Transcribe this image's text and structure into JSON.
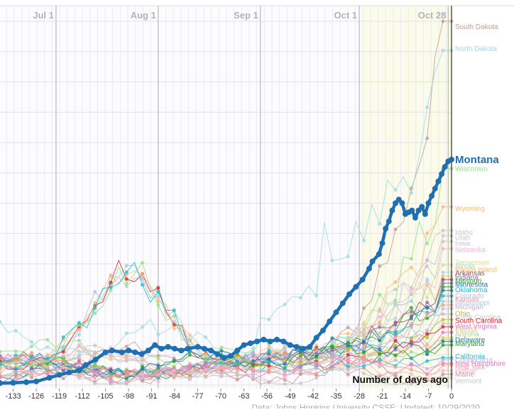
{
  "chart_data": {
    "type": "line",
    "x_range": [
      -137,
      0
    ],
    "y_range": [
      0,
      1
    ],
    "x_ticks": [
      -133,
      -126,
      -119,
      -112,
      -105,
      -98,
      -91,
      -84,
      -77,
      -70,
      -63,
      -56,
      -49,
      -42,
      -35,
      -28,
      -21,
      -14,
      -7,
      0
    ],
    "month_markers": [
      {
        "label": "Jul 1",
        "x": -120
      },
      {
        "label": "Aug 1",
        "x": -89
      },
      {
        "label": "Sep 1",
        "x": -58
      },
      {
        "label": "Oct 1",
        "x": -28
      },
      {
        "label": "Oct 28",
        "x": -1
      }
    ],
    "grid": true,
    "xlabel": "Number of days ago",
    "source": "Data: Johns Hopkins University CSSE; Updated: 10/29/2020",
    "highlight": {
      "name": "Montana",
      "color": "#1f6fb2",
      "points": [
        [
          -137,
          0.005
        ],
        [
          -133,
          0.006
        ],
        [
          -129,
          0.008
        ],
        [
          -126,
          0.01
        ],
        [
          -122,
          0.02
        ],
        [
          -119,
          0.028
        ],
        [
          -116,
          0.035
        ],
        [
          -113,
          0.04
        ],
        [
          -111,
          0.055
        ],
        [
          -108,
          0.07
        ],
        [
          -105,
          0.09
        ],
        [
          -103,
          0.095
        ],
        [
          -100,
          0.09
        ],
        [
          -98,
          0.095
        ],
        [
          -96,
          0.09
        ],
        [
          -94,
          0.085
        ],
        [
          -92,
          0.095
        ],
        [
          -90,
          0.11
        ],
        [
          -88,
          0.1
        ],
        [
          -86,
          0.105
        ],
        [
          -84,
          0.1
        ],
        [
          -82,
          0.095
        ],
        [
          -80,
          0.1
        ],
        [
          -77,
          0.105
        ],
        [
          -75,
          0.1
        ],
        [
          -73,
          0.095
        ],
        [
          -71,
          0.085
        ],
        [
          -69,
          0.075
        ],
        [
          -67,
          0.08
        ],
        [
          -65,
          0.095
        ],
        [
          -63,
          0.11
        ],
        [
          -61,
          0.115
        ],
        [
          -59,
          0.12
        ],
        [
          -57,
          0.125
        ],
        [
          -55,
          0.12
        ],
        [
          -53,
          0.125
        ],
        [
          -51,
          0.12
        ],
        [
          -49,
          0.11
        ],
        [
          -47,
          0.105
        ],
        [
          -45,
          0.1
        ],
        [
          -43,
          0.105
        ],
        [
          -41,
          0.13
        ],
        [
          -39,
          0.15
        ],
        [
          -37,
          0.175
        ],
        [
          -35,
          0.2
        ],
        [
          -33,
          0.225
        ],
        [
          -31,
          0.25
        ],
        [
          -29,
          0.27
        ],
        [
          -27,
          0.29
        ],
        [
          -25,
          0.32
        ],
        [
          -24,
          0.34
        ],
        [
          -22,
          0.36
        ],
        [
          -21,
          0.39
        ],
        [
          -20,
          0.43
        ],
        [
          -19,
          0.45
        ],
        [
          -18,
          0.48
        ],
        [
          -17,
          0.5
        ],
        [
          -16,
          0.51
        ],
        [
          -15,
          0.5
        ],
        [
          -14,
          0.47
        ],
        [
          -13,
          0.475
        ],
        [
          -12,
          0.48
        ],
        [
          -11,
          0.46
        ],
        [
          -10,
          0.48
        ],
        [
          -9,
          0.49
        ],
        [
          -8,
          0.47
        ],
        [
          -7,
          0.5
        ],
        [
          -6,
          0.52
        ],
        [
          -5,
          0.54
        ],
        [
          -4,
          0.56
        ],
        [
          -3,
          0.58
        ],
        [
          -2,
          0.6
        ],
        [
          -1,
          0.615
        ],
        [
          0,
          0.62
        ]
      ]
    },
    "series": [
      {
        "name": "South Dakota",
        "color": "#c49c94",
        "end": 1.0,
        "profile": "sd"
      },
      {
        "name": "North Dakota",
        "color": "#9edae5",
        "end": 0.92,
        "profile": "nd"
      },
      {
        "name": "Wisconsin",
        "color": "#98df8a",
        "end": 0.595,
        "profile": "wi"
      },
      {
        "name": "Wyoming",
        "color": "#ffbb78",
        "end": 0.49,
        "profile": "rise"
      },
      {
        "name": "Idaho",
        "color": "#c7c7c7",
        "end": 0.425,
        "profile": "rise"
      },
      {
        "name": "Utah",
        "color": "#c7c7c7",
        "end": 0.41,
        "profile": "rise"
      },
      {
        "name": "Iowa",
        "color": "#c7c7c7",
        "end": 0.395,
        "profile": "rise"
      },
      {
        "name": "Nebraska",
        "color": "#f7b6d2",
        "end": 0.375,
        "profile": "rise"
      },
      {
        "name": "Tennessee",
        "color": "#dbdb8d",
        "end": 0.33,
        "profile": "mid"
      },
      {
        "name": "Illinois",
        "color": "#9edae5",
        "end": 0.31,
        "profile": "mid"
      },
      {
        "name": "Rhode Island",
        "color": "#ffbb78",
        "end": 0.3,
        "profile": "mid"
      },
      {
        "name": "Arkansas",
        "color": "#8c564b",
        "end": 0.29,
        "profile": "mid"
      },
      {
        "name": "Indiana",
        "color": "#9467bd",
        "end": 0.28,
        "profile": "mid"
      },
      {
        "name": "Missouri",
        "color": "#2ca02c",
        "end": 0.27,
        "profile": "mid"
      },
      {
        "name": "Minnesota",
        "color": "#1f77b4",
        "end": 0.26,
        "profile": "mid"
      },
      {
        "name": "Oklahoma",
        "color": "#17becf",
        "end": 0.245,
        "profile": "mid"
      },
      {
        "name": "Colorado",
        "color": "#aec7e8",
        "end": 0.23,
        "profile": "mid"
      },
      {
        "name": "Kansas",
        "color": "#ff9896",
        "end": 0.22,
        "profile": "mid"
      },
      {
        "name": "Mississippi",
        "color": "#aec7e8",
        "end": 0.21,
        "profile": "summer"
      },
      {
        "name": "Michigan",
        "color": "#c5b0d5",
        "end": 0.195,
        "profile": "mid"
      },
      {
        "name": "Ohio",
        "color": "#bcbd22",
        "end": 0.18,
        "profile": "mid"
      },
      {
        "name": "North Carolina",
        "color": "#c7c7c7",
        "end": 0.17,
        "profile": "summer"
      },
      {
        "name": "South Carolina",
        "color": "#d62728",
        "end": 0.16,
        "profile": "summer"
      },
      {
        "name": "West Virginia",
        "color": "#e377c2",
        "end": 0.145,
        "profile": "mid"
      },
      {
        "name": "Florida",
        "color": "#ffbb78",
        "end": 0.13,
        "profile": "summer"
      },
      {
        "name": "Arizona",
        "color": "#98df8a",
        "end": 0.125,
        "profile": "summer"
      },
      {
        "name": "Delaware",
        "color": "#1f77b4",
        "end": 0.12,
        "profile": "flat"
      },
      {
        "name": "Maryland",
        "color": "#2ca02c",
        "end": 0.11,
        "profile": "flat"
      },
      {
        "name": "California",
        "color": "#17becf",
        "end": 0.075,
        "profile": "summer"
      },
      {
        "name": "Connecticut",
        "color": "#c5b0d5",
        "end": 0.07,
        "profile": "flat"
      },
      {
        "name": "New Hampshire",
        "color": "#e377c2",
        "end": 0.06,
        "profile": "flat"
      },
      {
        "name": "New York",
        "color": "#ff9896",
        "end": 0.055,
        "profile": "flat"
      },
      {
        "name": "Hawaii",
        "color": "#f7b6d2",
        "end": 0.04,
        "profile": "flat"
      },
      {
        "name": "Maine",
        "color": "#c49c94",
        "end": 0.03,
        "profile": "flat"
      },
      {
        "name": "Vermont",
        "color": "#c7c7c7",
        "end": 0.02,
        "profile": "flat"
      }
    ],
    "label_positions": {
      "South Dakota": 0.985,
      "North Dakota": 0.925,
      "Wisconsin": 0.595,
      "Wyoming": 0.485,
      "Idaho": 0.42,
      "Utah": 0.405,
      "Iowa": 0.39,
      "Nebraska": 0.372,
      "Tennessee": 0.337,
      "Illinois": 0.328,
      "Rhode Island": 0.318,
      "Arkansas": 0.308,
      "Indiana": 0.296,
      "Missouri": 0.287,
      "Minnesota": 0.277,
      "Oklahoma": 0.262,
      "Colorado": 0.246,
      "Kansas": 0.237,
      "Mississippi": 0.227,
      "Michigan": 0.215,
      "Ohio": 0.197,
      "North Carolina": 0.187,
      "South Carolina": 0.177,
      "West Virginia": 0.162,
      "Florida": 0.152,
      "Arizona": 0.14,
      "Delaware": 0.125,
      "Maryland": 0.114,
      "California": 0.079,
      "Connecticut": 0.069,
      "New Hampshire": 0.059,
      "New York": 0.05,
      "Hawaii": 0.04,
      "Maine": 0.03,
      "Vermont": 0.012
    }
  }
}
